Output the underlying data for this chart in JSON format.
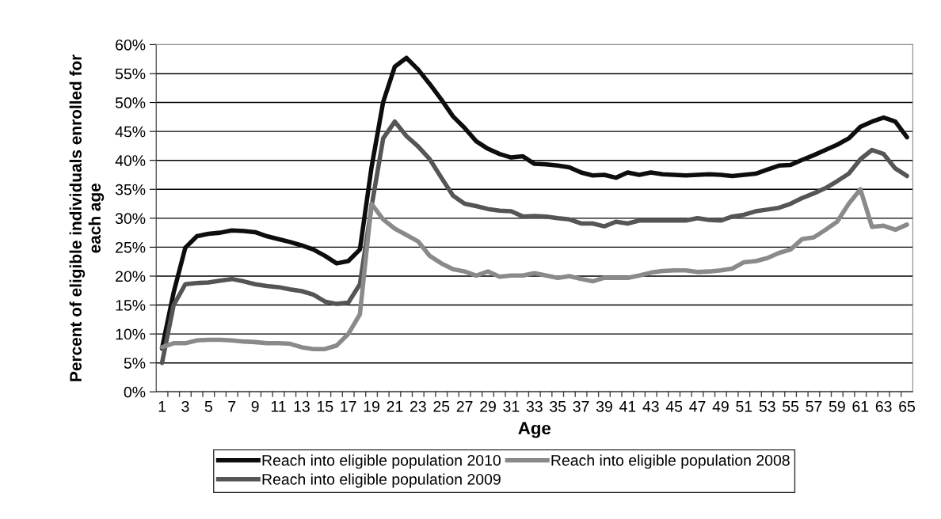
{
  "chart_data": {
    "type": "line",
    "xlabel": "Age",
    "ylabel": "Percent of eligible individuals enrolled for\neach age",
    "categories": [
      "1",
      null,
      "3",
      null,
      "5",
      null,
      "7",
      null,
      "9",
      null,
      "11",
      null,
      "13",
      null,
      "15",
      null,
      "17",
      null,
      "19",
      null,
      "21",
      null,
      "23",
      null,
      "25",
      null,
      "27",
      null,
      "29",
      null,
      "31",
      null,
      "33",
      null,
      "35",
      null,
      "37",
      null,
      "39",
      null,
      "41",
      null,
      "43",
      null,
      "45",
      null,
      "47",
      null,
      "49",
      null,
      "51",
      null,
      "53",
      null,
      "55",
      null,
      "57",
      null,
      "59",
      null,
      "61",
      null,
      "63",
      null,
      "65"
    ],
    "series": [
      {
        "name": "Reach into eligible population 2010",
        "color": "#0d0d0d",
        "values": [
          7.5,
          17.2,
          24.9,
          26.9,
          27.3,
          27.5,
          27.9,
          27.8,
          27.6,
          26.9,
          26.4,
          25.9,
          25.3,
          24.6,
          23.5,
          22.2,
          22.6,
          24.6,
          38.8,
          50.1,
          56.2,
          57.7,
          55.7,
          53.2,
          50.5,
          47.6,
          45.6,
          43.3,
          42.0,
          41.1,
          40.5,
          40.7,
          39.4,
          39.3,
          39.1,
          38.8,
          37.9,
          37.4,
          37.5,
          37.0,
          37.9,
          37.5,
          37.9,
          37.6,
          37.5,
          37.4,
          37.5,
          37.6,
          37.5,
          37.3,
          37.5,
          37.7,
          38.4,
          39.1,
          39.2,
          40.1,
          40.9,
          41.8,
          42.7,
          43.8,
          45.8,
          46.7,
          47.4,
          46.7,
          44.0
        ]
      },
      {
        "name": "Reach into eligible population 2009",
        "color": "#555555",
        "values": [
          5.0,
          15.0,
          18.6,
          18.8,
          18.9,
          19.2,
          19.5,
          19.1,
          18.6,
          18.3,
          18.1,
          17.7,
          17.4,
          16.8,
          15.6,
          15.2,
          15.4,
          18.6,
          32.0,
          43.8,
          46.7,
          44.2,
          42.4,
          40.2,
          37.0,
          33.9,
          32.5,
          32.1,
          31.6,
          31.3,
          31.2,
          30.3,
          30.4,
          30.3,
          30.0,
          29.8,
          29.1,
          29.1,
          28.6,
          29.4,
          29.1,
          29.6,
          29.6,
          29.6,
          29.6,
          29.6,
          30.0,
          29.7,
          29.6,
          30.3,
          30.6,
          31.2,
          31.5,
          31.8,
          32.5,
          33.5,
          34.3,
          35.2,
          36.4,
          37.7,
          40.2,
          41.8,
          41.1,
          38.6,
          37.3
        ]
      },
      {
        "name": "Reach into eligible population 2008",
        "color": "#8a8a8a",
        "values": [
          7.7,
          8.4,
          8.4,
          8.9,
          9.0,
          9.0,
          8.9,
          8.7,
          8.6,
          8.4,
          8.4,
          8.3,
          7.7,
          7.4,
          7.4,
          8.0,
          10.0,
          13.4,
          32.5,
          29.8,
          28.2,
          27.1,
          26.0,
          23.5,
          22.2,
          21.2,
          20.8,
          20.1,
          20.8,
          19.9,
          20.1,
          20.1,
          20.5,
          20.1,
          19.7,
          20.0,
          19.5,
          19.1,
          19.7,
          19.7,
          19.7,
          20.1,
          20.6,
          20.9,
          21.0,
          21.0,
          20.7,
          20.8,
          21.0,
          21.3,
          22.4,
          22.6,
          23.1,
          24.0,
          24.6,
          26.4,
          26.7,
          28.0,
          29.4,
          32.5,
          35.0,
          28.5,
          28.7,
          28.0,
          28.9
        ]
      }
    ],
    "ylim": [
      0,
      60
    ],
    "yticks": [
      {
        "value": 0,
        "label": "0%"
      },
      {
        "value": 5,
        "label": "5%"
      },
      {
        "value": 10,
        "label": "10%"
      },
      {
        "value": 15,
        "label": "15%"
      },
      {
        "value": 20,
        "label": "20%"
      },
      {
        "value": 25,
        "label": "25%"
      },
      {
        "value": 30,
        "label": "30%"
      },
      {
        "value": 35,
        "label": "35%"
      },
      {
        "value": 40,
        "label": "40%"
      },
      {
        "value": 45,
        "label": "45%"
      },
      {
        "value": 50,
        "label": "50%"
      },
      {
        "value": 55,
        "label": "55%"
      },
      {
        "value": 60,
        "label": "60%"
      }
    ],
    "grid": "y",
    "legend": "bottom",
    "marker": "none",
    "line_style": "solid"
  }
}
